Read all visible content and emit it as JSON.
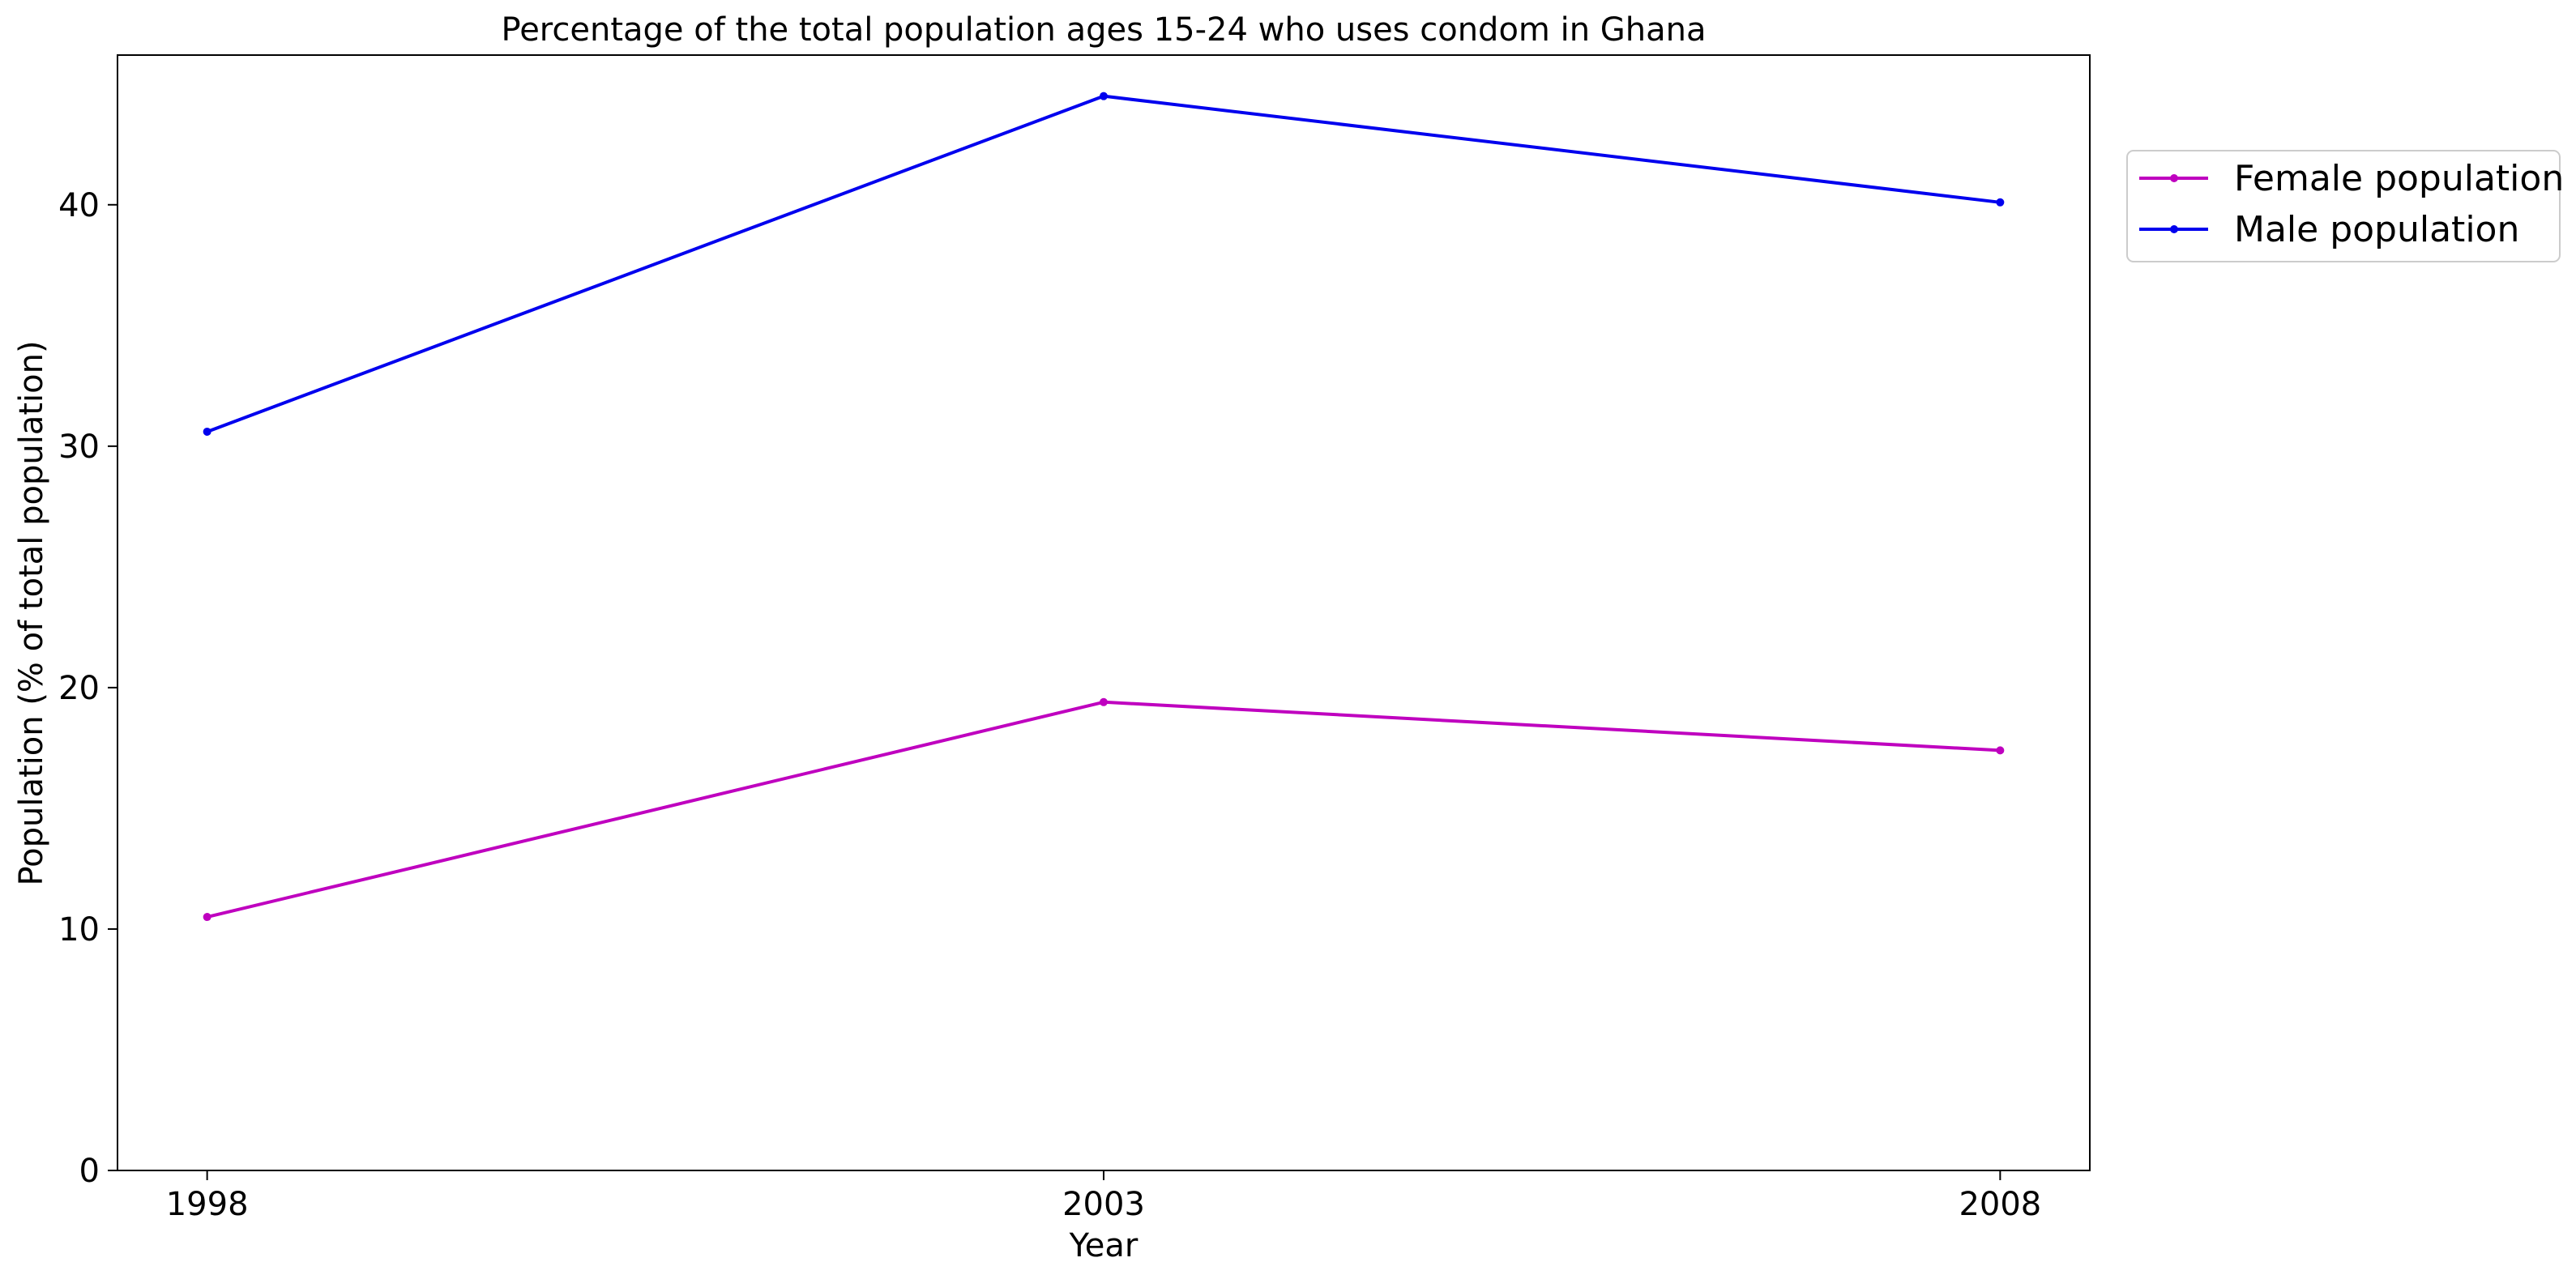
{
  "chart_data": {
    "type": "line",
    "title": "Percentage of the total population ages 15-24 who uses condom in Ghana",
    "xlabel": "Year",
    "ylabel": "Population (% of total population)",
    "x": [
      1998,
      2003,
      2008
    ],
    "x_tick_labels": [
      "1998",
      "2003",
      "2008"
    ],
    "xlim": [
      1997.5,
      2008.5
    ],
    "ylim": [
      0,
      46.2
    ],
    "y_ticks": [
      0,
      10,
      20,
      30,
      40
    ],
    "y_tick_labels": [
      "0",
      "10",
      "20",
      "30",
      "40"
    ],
    "grid": false,
    "legend_placement": "outside-top-right",
    "series": [
      {
        "name": "Female population",
        "color": "#bf00bf",
        "values": [
          10.5,
          19.4,
          17.4
        ]
      },
      {
        "name": "Male population",
        "color": "#0000ee",
        "values": [
          30.6,
          44.5,
          40.1
        ]
      }
    ]
  }
}
